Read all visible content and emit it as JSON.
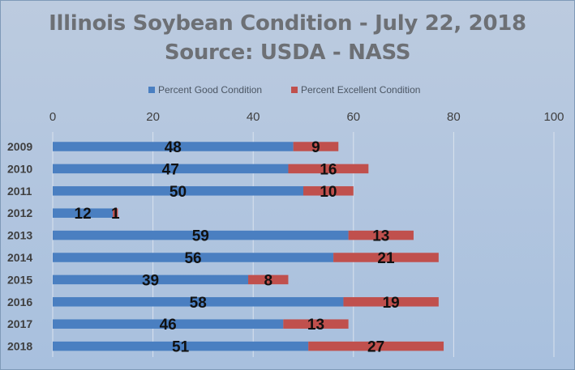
{
  "chart_data": {
    "type": "bar",
    "orientation": "horizontal",
    "stacked": true,
    "title": "Illinois Soybean Condition - July 22, 2018",
    "subtitle": "Source: USDA - NASS",
    "categories": [
      "2009",
      "2010",
      "2011",
      "2012",
      "2013",
      "2014",
      "2015",
      "2016",
      "2017",
      "2018"
    ],
    "series": [
      {
        "name": "Percent Good Condition",
        "color": "#4a7fc1",
        "values": [
          48,
          47,
          50,
          12,
          59,
          56,
          39,
          58,
          46,
          51
        ]
      },
      {
        "name": "Percent Excellent Condition",
        "color": "#c0504d",
        "values": [
          9,
          16,
          10,
          1,
          13,
          21,
          8,
          19,
          13,
          27
        ]
      }
    ],
    "xlim": [
      0,
      100
    ],
    "xticks": [
      0,
      20,
      40,
      60,
      80,
      100
    ],
    "xaxis_position": "top",
    "legend_position": "top",
    "grid": true
  }
}
